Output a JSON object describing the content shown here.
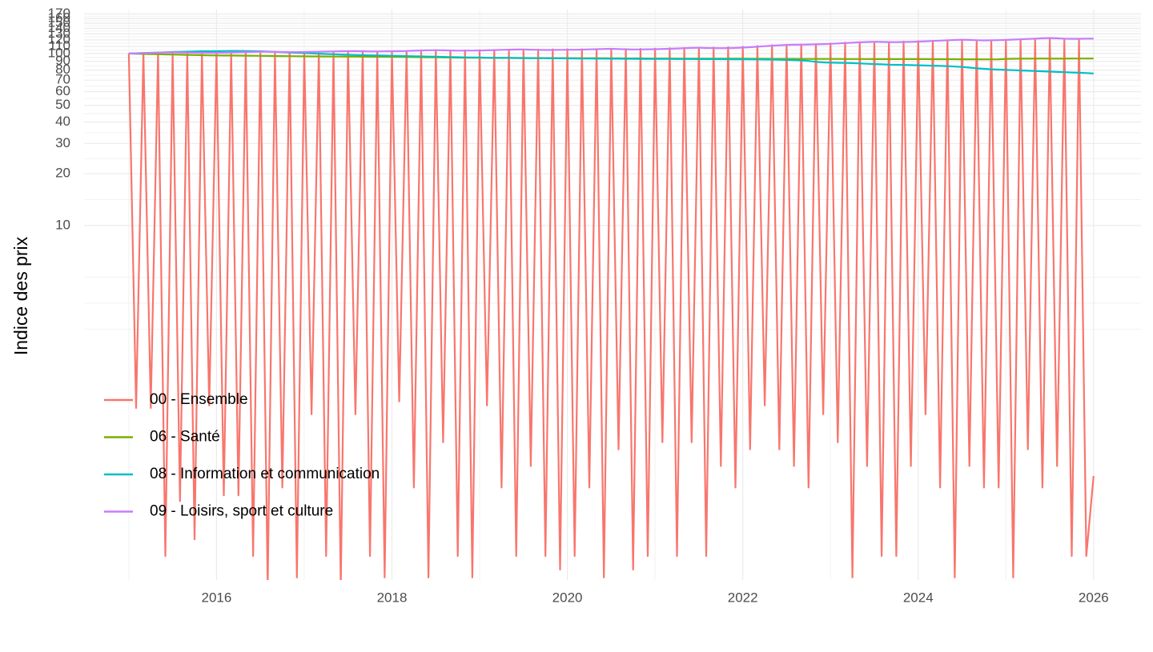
{
  "chart_data": {
    "type": "line",
    "y_label": "Indice des prix",
    "log_scale": true,
    "grid": true,
    "legend_position": "bottom-left",
    "xlim": [
      2014.49,
      2026.54
    ],
    "xticks": [
      2016,
      2018,
      2020,
      2022,
      2024,
      2026
    ],
    "ylim": [
      0.087,
      180
    ],
    "yticks": [
      10,
      20,
      30,
      40,
      50,
      60,
      70,
      80,
      90,
      100,
      110,
      120,
      130,
      140,
      150,
      160,
      170
    ],
    "x": [
      "2015-01",
      "2015-02",
      "2015-03",
      "2015-04",
      "2015-05",
      "2015-06",
      "2015-07",
      "2015-08",
      "2015-09",
      "2015-10",
      "2015-11",
      "2015-12",
      "2016-01",
      "2016-02",
      "2016-03",
      "2016-04",
      "2016-05",
      "2016-06",
      "2016-07",
      "2016-08",
      "2016-09",
      "2016-10",
      "2016-11",
      "2016-12",
      "2017-01",
      "2017-02",
      "2017-03",
      "2017-04",
      "2017-05",
      "2017-06",
      "2017-07",
      "2017-08",
      "2017-09",
      "2017-10",
      "2017-11",
      "2017-12",
      "2018-01",
      "2018-02",
      "2018-03",
      "2018-04",
      "2018-05",
      "2018-06",
      "2018-07",
      "2018-08",
      "2018-09",
      "2018-10",
      "2018-11",
      "2018-12",
      "2019-01",
      "2019-02",
      "2019-03",
      "2019-04",
      "2019-05",
      "2019-06",
      "2019-07",
      "2019-08",
      "2019-09",
      "2019-10",
      "2019-11",
      "2019-12",
      "2020-01",
      "2020-02",
      "2020-03",
      "2020-04",
      "2020-05",
      "2020-06",
      "2020-07",
      "2020-08",
      "2020-09",
      "2020-10",
      "2020-11",
      "2020-12",
      "2021-01",
      "2021-02",
      "2021-03",
      "2021-04",
      "2021-05",
      "2021-06",
      "2021-07",
      "2021-08",
      "2021-09",
      "2021-10",
      "2021-11",
      "2021-12",
      "2022-01",
      "2022-02",
      "2022-03",
      "2022-04",
      "2022-05",
      "2022-06",
      "2022-07",
      "2022-08",
      "2022-09",
      "2022-10",
      "2022-11",
      "2022-12",
      "2023-01",
      "2023-02",
      "2023-03",
      "2023-04",
      "2023-05",
      "2023-06",
      "2023-07",
      "2023-08",
      "2023-09",
      "2023-10",
      "2023-11",
      "2023-12",
      "2024-01",
      "2024-02",
      "2024-03",
      "2024-04",
      "2024-05",
      "2024-06",
      "2024-07",
      "2024-08",
      "2024-09",
      "2024-10",
      "2024-11",
      "2024-12",
      "2025-01",
      "2025-02",
      "2025-03",
      "2025-04",
      "2025-05",
      "2025-06",
      "2025-07",
      "2025-08",
      "2025-09",
      "2025-10",
      "2025-11",
      "2025-12",
      "2026-01"
    ],
    "series": [
      {
        "name": "00 - Ensemble",
        "color": "#F8766D",
        "values": [
          100,
          0.87,
          100.5,
          0.87,
          100.8,
          0.12,
          100.6,
          0.25,
          100.2,
          0.15,
          100.4,
          0.9,
          100.1,
          0.27,
          100.6,
          0.27,
          100.9,
          0.12,
          101,
          0.08,
          101.2,
          0.3,
          101.1,
          0.09,
          101.2,
          0.8,
          101.5,
          0.12,
          101.9,
          0.08,
          102,
          0.8,
          102.3,
          0.12,
          102.5,
          0.09,
          102.9,
          0.95,
          103.4,
          0.3,
          104,
          0.09,
          104.1,
          0.55,
          104.4,
          0.12,
          104.5,
          0.09,
          104.7,
          0.9,
          105,
          0.3,
          105.3,
          0.12,
          105.5,
          0.4,
          105.6,
          0.12,
          105.8,
          0.1,
          106,
          0.12,
          106,
          0.3,
          105.9,
          0.09,
          106.2,
          0.5,
          106.3,
          0.1,
          106.5,
          0.12,
          106.8,
          0.55,
          107.4,
          0.12,
          107.8,
          0.55,
          108,
          0.12,
          108.4,
          0.4,
          108.9,
          0.3,
          109.5,
          0.5,
          110.6,
          0.9,
          111.8,
          0.5,
          112.5,
          0.4,
          113,
          0.3,
          113.5,
          0.8,
          114.6,
          0.55,
          115.8,
          0.09,
          116.5,
          0.4,
          116.6,
          0.12,
          116.5,
          0.12,
          117.6,
          0.4,
          118.1,
          0.8,
          118.8,
          0.3,
          119,
          0.09,
          119.3,
          0.4,
          119,
          0.3,
          119.1,
          0.3,
          119.5,
          0.09,
          120,
          0.5,
          120.6,
          0.3,
          120.8,
          0.4,
          121,
          0.12,
          121.4,
          0.12,
          0.35
        ]
      },
      {
        "name": "06 - Santé",
        "color": "#7CAE00",
        "values": [
          100,
          99.8,
          99.5,
          99.2,
          99,
          98.8,
          98.6,
          98.4,
          98.2,
          98,
          97.8,
          97.6,
          97.5,
          97.4,
          97.3,
          97.2,
          97.1,
          97,
          96.9,
          96.8,
          96.7,
          96.6,
          96.5,
          96.4,
          96.3,
          96.2,
          96.2,
          96.1,
          96,
          96,
          95.9,
          95.9,
          95.8,
          95.8,
          95.7,
          95.7,
          95.6,
          95.5,
          95.4,
          95.3,
          95.2,
          95.1,
          95,
          94.9,
          94.8,
          94.7,
          94.6,
          94.5,
          94.5,
          94.4,
          94.4,
          94.3,
          94.3,
          94.2,
          94.2,
          94.1,
          94.1,
          94,
          94,
          94,
          94,
          94,
          93.9,
          93.9,
          93.8,
          93.8,
          93.7,
          93.7,
          93.6,
          93.6,
          93.6,
          93.5,
          93.5,
          93.5,
          93.5,
          93.4,
          93.4,
          93.4,
          93.4,
          93.3,
          93.3,
          93.3,
          93.3,
          93.3,
          93.3,
          93.2,
          93.2,
          93.2,
          93.1,
          93.1,
          93.1,
          93.1,
          93,
          93,
          93,
          93,
          93,
          93,
          92.9,
          92.9,
          92.9,
          92.9,
          92.8,
          92.8,
          92.8,
          92.8,
          92.8,
          92.8,
          92.8,
          92.8,
          92.7,
          92.7,
          92.7,
          92.7,
          92.6,
          92.6,
          92.6,
          92.5,
          92.5,
          92.6,
          93,
          93.2,
          93.3,
          93.4,
          93.4,
          93.5,
          93.4,
          93.4,
          93.4,
          93.5,
          93.5,
          93.5,
          93.5
        ]
      },
      {
        "name": "08 - Information et communication",
        "color": "#00BFC4",
        "values": [
          100,
          100.3,
          100.6,
          101,
          101.3,
          101.6,
          102,
          102.3,
          102.5,
          102.8,
          103,
          103,
          103.2,
          103.4,
          103.5,
          103.5,
          103.4,
          103.2,
          103,
          102.6,
          102.2,
          101.8,
          101.4,
          101,
          100.6,
          100.2,
          99.8,
          99.4,
          99,
          98.6,
          98.3,
          98,
          97.8,
          97.6,
          97.4,
          97.2,
          97,
          96.8,
          96.6,
          96.4,
          96.2,
          96,
          95.8,
          95.6,
          95.4,
          95.2,
          95,
          94.9,
          94.8,
          94.6,
          94.5,
          94.4,
          94.3,
          94.2,
          94.1,
          94,
          94,
          94,
          93.9,
          93.8,
          93.7,
          93.6,
          93.5,
          93.5,
          93.4,
          93.4,
          93.3,
          93.3,
          93.2,
          93.2,
          93.1,
          93,
          93,
          93,
          93,
          92.9,
          92.9,
          92.9,
          92.8,
          92.8,
          92.8,
          92.7,
          92.7,
          92.6,
          92.6,
          92.5,
          92.4,
          92.3,
          92.2,
          92,
          91.8,
          91.6,
          91.2,
          90.5,
          89.5,
          88.8,
          88.5,
          88.3,
          88.1,
          87.9,
          87.6,
          87.2,
          86.8,
          86.5,
          86.2,
          86,
          85.8,
          85.6,
          85.4,
          85.2,
          85,
          84.7,
          84.4,
          84,
          83.5,
          82.8,
          82,
          81.5,
          81,
          80.6,
          80.3,
          80,
          79.7,
          79.4,
          79.1,
          78.8,
          78.5,
          78.2,
          77.9,
          77.6,
          77.3,
          77,
          76.5
        ]
      },
      {
        "name": "09 - Loisirs, sport et culture",
        "color": "#C77CFF",
        "values": [
          100,
          100.3,
          100.6,
          100.9,
          101.2,
          101.5,
          101.6,
          101.4,
          101.2,
          101,
          100.9,
          100.8,
          100.9,
          101.1,
          101.3,
          101.6,
          101.9,
          102.2,
          102.5,
          102.4,
          102.2,
          102,
          101.9,
          101.9,
          102,
          102.2,
          102.4,
          102.6,
          102.8,
          103,
          103.2,
          103.2,
          103,
          102.8,
          102.8,
          102.9,
          103,
          103.2,
          103.4,
          103.8,
          104.2,
          104.5,
          104.6,
          104.4,
          104.1,
          103.9,
          103.9,
          104,
          104.2,
          104.4,
          104.7,
          105,
          105.3,
          105.5,
          105.6,
          105.3,
          105,
          104.8,
          104.9,
          105,
          105.1,
          105.2,
          105.4,
          105.7,
          106,
          106.3,
          106.5,
          106.2,
          105.8,
          105.6,
          105.6,
          105.8,
          106,
          106.3,
          106.6,
          107,
          107.4,
          107.8,
          108,
          107.7,
          107.5,
          107.4,
          107.5,
          107.8,
          108.2,
          108.8,
          109.5,
          110.3,
          111,
          111.7,
          112.3,
          112.5,
          112.6,
          112.8,
          113.1,
          113.4,
          113.8,
          114.4,
          115,
          115.6,
          116.2,
          116.7,
          117,
          116.8,
          116.5,
          116.4,
          116.6,
          116.9,
          117.3,
          117.8,
          118.3,
          118.8,
          119.3,
          119.8,
          120.3,
          120,
          119.5,
          119.2,
          119.3,
          119.6,
          120,
          120.5,
          121,
          121.5,
          122,
          122.5,
          123,
          122.5,
          122,
          121.8,
          121.8,
          122,
          122
        ]
      }
    ]
  }
}
